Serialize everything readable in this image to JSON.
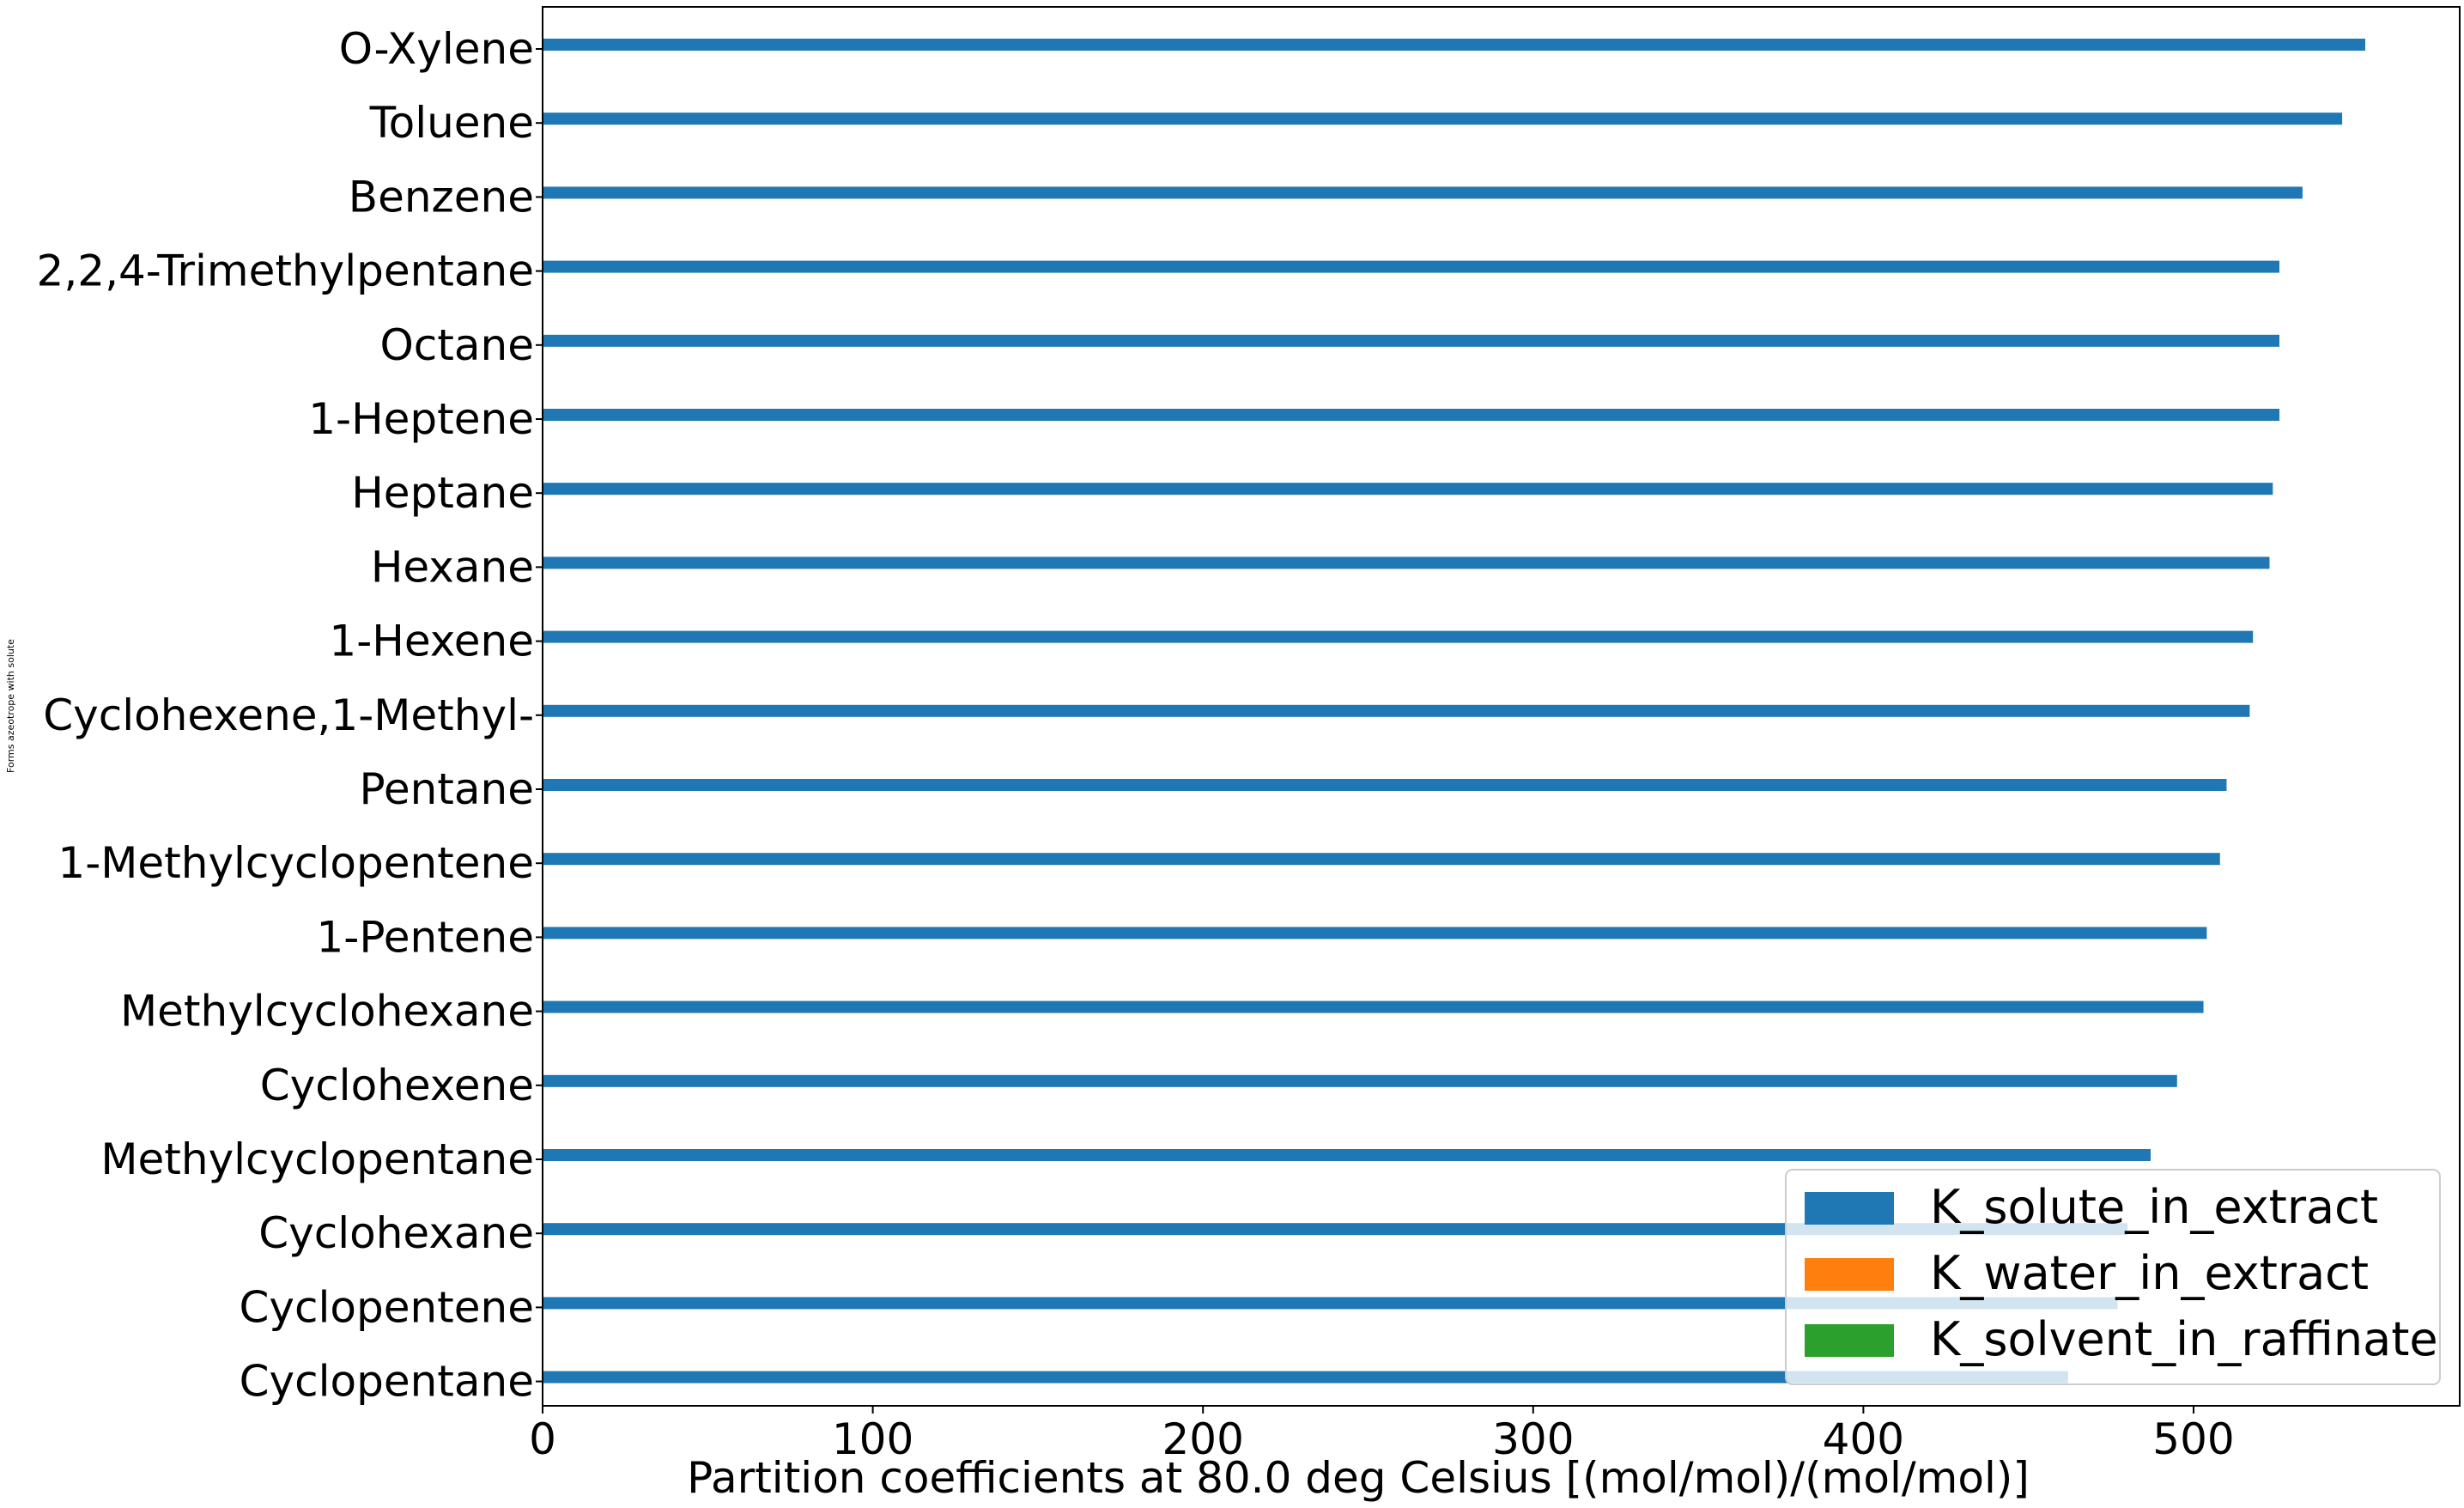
{
  "chart_data": {
    "type": "bar",
    "orientation": "horizontal",
    "title": "",
    "xlabel": "Partition coefficients at 80.0 deg Celsius [(mol/mol)/(mol/mol)]",
    "ylabel": "Forms azeotrope with solute",
    "xlim": [
      0,
      580
    ],
    "xticks": [
      0,
      100,
      200,
      300,
      400,
      500
    ],
    "categories": [
      "O-Xylene",
      "Toluene",
      "Benzene",
      "2,2,4-Trimethylpentane",
      "Octane",
      "1-Heptene",
      "Heptane",
      "Hexane",
      "1-Hexene",
      "Cyclohexene,1-Methyl-",
      "Pentane",
      "1-Methylcyclopentene",
      "1-Pentene",
      "Methylcyclohexane",
      "Cyclohexene",
      "Methylcyclopentane",
      "Cyclohexane",
      "Cyclopentene",
      "Cyclopentane"
    ],
    "series": [
      {
        "name": "K_solute_in_extract",
        "color": "#1f77b4",
        "values": [
          552,
          545,
          533,
          526,
          526,
          526,
          524,
          523,
          518,
          517,
          510,
          508,
          504,
          503,
          495,
          487,
          480,
          477,
          462
        ]
      },
      {
        "name": "K_water_in_extract",
        "color": "#ff7f0e",
        "values": [
          0,
          0,
          0,
          0,
          0,
          0,
          0,
          0,
          0,
          0,
          0,
          0,
          0,
          0,
          0,
          0,
          0,
          0,
          0
        ]
      },
      {
        "name": "K_solvent_in_raffinate",
        "color": "#2ca02c",
        "values": [
          0,
          0,
          0,
          0,
          0,
          0,
          0,
          0,
          0,
          0,
          0,
          0,
          0,
          0,
          0,
          0,
          0,
          0,
          0
        ]
      }
    ],
    "legend_position": "lower-right",
    "grid": false
  }
}
